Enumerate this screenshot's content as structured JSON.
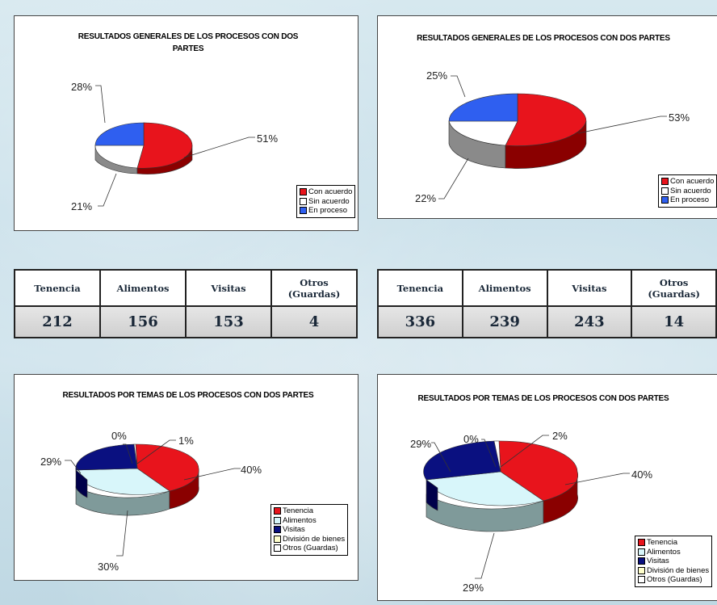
{
  "legend_general": [
    "Con acuerdo",
    "Sin acuerdo",
    "En proceso"
  ],
  "legend_temas": [
    "Tenencia",
    "Alimentos",
    "Visitas",
    "División de bienes",
    "Otros (Guardas)"
  ],
  "colors": {
    "red": "#e8141c",
    "white": "#ffffff",
    "blue": "#2f5ff0",
    "navy": "#0a1080",
    "cyan": "#d8f6fa",
    "yellow": "#ffffcc"
  },
  "chart_data": [
    {
      "type": "pie",
      "title": "RESULTADOS GENERALES DE LOS PROCESOS CON DOS PARTES",
      "labels": [
        "Con acuerdo",
        "Sin acuerdo",
        "En proceso"
      ],
      "values": [
        51,
        21,
        28
      ],
      "data_labels": [
        "51%",
        "21%",
        "28%"
      ],
      "legend": "bottom-right"
    },
    {
      "type": "pie",
      "title": "RESULTADOS GENERALES DE LOS PROCESOS CON DOS PARTES",
      "labels": [
        "Con acuerdo",
        "Sin acuerdo",
        "En proceso"
      ],
      "values": [
        53,
        22,
        25
      ],
      "data_labels": [
        "53%",
        "22%",
        "25%"
      ],
      "legend": "bottom-right"
    },
    {
      "type": "pie",
      "title": "RESULTADOS POR TEMAS DE LOS PROCESOS CON DOS PARTES",
      "labels": [
        "Tenencia",
        "Alimentos",
        "Visitas",
        "División de bienes",
        "Otros (Guardas)"
      ],
      "values": [
        40,
        30,
        29,
        0,
        1
      ],
      "data_labels": [
        "40%",
        "30%",
        "29%",
        "0%",
        "1%"
      ],
      "legend": "bottom-right"
    },
    {
      "type": "pie",
      "title": "RESULTADOS POR TEMAS DE LOS PROCESOS CON DOS PARTES",
      "labels": [
        "Tenencia",
        "Alimentos",
        "Visitas",
        "División de bienes",
        "Otros (Guardas)"
      ],
      "values": [
        40,
        29,
        29,
        0,
        2
      ],
      "data_labels": [
        "40%",
        "29%",
        "29%",
        "0%",
        "2%"
      ],
      "legend": "bottom-right"
    },
    {
      "type": "table",
      "columns": [
        "Tenencia",
        "Alimentos",
        "Visitas",
        "Otros (Guardas)"
      ],
      "rows": [
        [
          "212",
          "156",
          "153",
          "4"
        ]
      ]
    },
    {
      "type": "table",
      "columns": [
        "Tenencia",
        "Alimentos",
        "Visitas",
        "Otros (Guardas)"
      ],
      "rows": [
        [
          "336",
          "239",
          "243",
          "14"
        ]
      ]
    }
  ]
}
